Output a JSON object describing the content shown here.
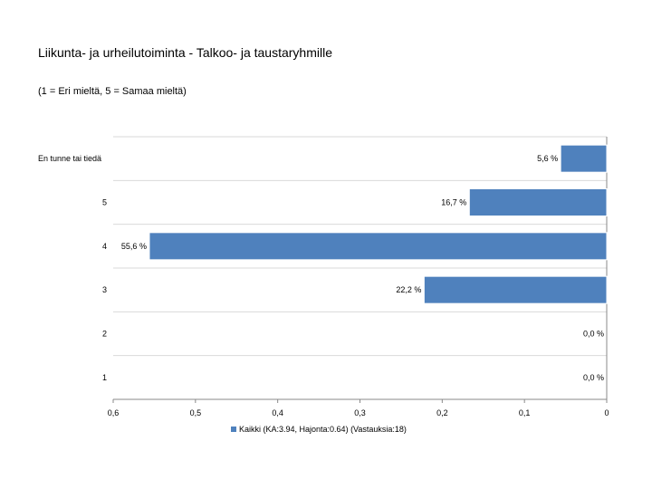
{
  "chart_data": {
    "type": "bar",
    "orientation": "horizontal",
    "title": "Liikunta- ja urheilutoiminta - Talkoo- ja taustaryhmille",
    "subtitle": "(1 = Eri mieltä, 5 = Samaa mieltä)",
    "categories": [
      "En tunne tai tiedä",
      "5",
      "4",
      "3",
      "2",
      "1"
    ],
    "series": [
      {
        "name": "Kaikki (KA:3.94, Hajonta:0.64) (Vastauksia:18)",
        "values": [
          0.056,
          0.167,
          0.556,
          0.222,
          0.0,
          0.0
        ],
        "labels": [
          "5,6 %",
          "16,7 %",
          "55,6 %",
          "22,2 %",
          "0,0 %",
          "0,0 %"
        ]
      }
    ],
    "x_ticks": [
      "0,6",
      "0,5",
      "0,4",
      "0,3",
      "0,2",
      "0,1",
      "0"
    ],
    "xlim": [
      0.6,
      0
    ],
    "grid": "horizontal",
    "legend": "bottom",
    "bar_color": "#4f81bd"
  }
}
